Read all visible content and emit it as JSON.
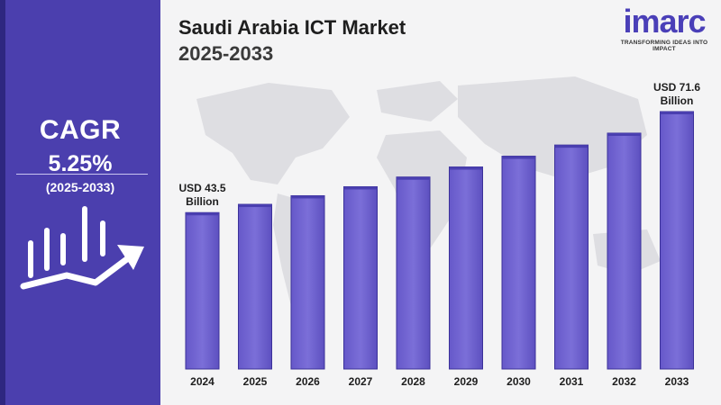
{
  "sidebar": {
    "cagr_label": "CAGR",
    "cagr_value": "5.25%",
    "period": "(2025-2033)"
  },
  "header": {
    "title": "Saudi Arabia ICT Market",
    "subtitle": "2025-2033"
  },
  "brand": {
    "logo": "imarc",
    "tagline": "TRANSFORMING IDEAS INTO IMPACT",
    "accent_color": "#4b3fae",
    "bar_color": "#7b6fd8"
  },
  "chart_data": {
    "type": "bar",
    "categories": [
      "2024",
      "2025",
      "2026",
      "2027",
      "2028",
      "2029",
      "2030",
      "2031",
      "2032",
      "2033"
    ],
    "values": [
      43.5,
      45.8,
      48.2,
      50.7,
      53.4,
      56.2,
      59.2,
      62.3,
      65.6,
      71.6
    ],
    "unit": "USD Billion",
    "ylim": [
      0,
      75
    ],
    "annotations": [
      {
        "category": "2024",
        "lines": [
          "USD 43.5",
          "Billion"
        ]
      },
      {
        "category": "2033",
        "lines": [
          "USD 71.6",
          "Billion"
        ]
      }
    ],
    "grid": false,
    "legend": "none"
  }
}
